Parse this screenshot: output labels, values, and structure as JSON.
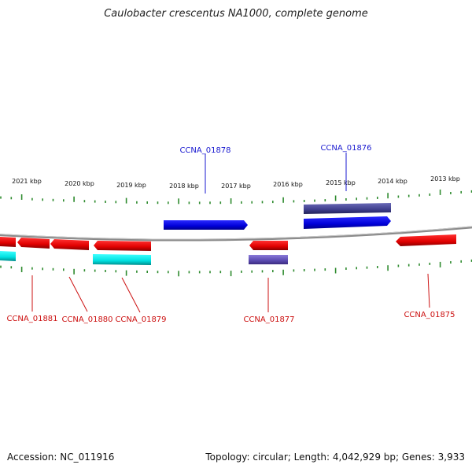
{
  "title": "Caulobacter crescentus NA1000, complete genome",
  "footer": {
    "accession": "Accession: NC_011916",
    "topology": "Topology: circular; Length: 4,042,929 bp; Genes: 3,933"
  },
  "colors": {
    "backbone": "#8a8a8a",
    "tick": "#2e8b2e",
    "forward_cds": "#1010e0",
    "forward_other": "#4a4aa0",
    "reverse_cds": "#e01010",
    "reverse_other": "#10d8d8",
    "reverse_misc": "#6a5ac0",
    "label_forward": "#1a1ad0",
    "label_reverse": "#cc1010"
  },
  "kbp_labels": [
    "2021 kbp",
    "2020 kbp",
    "2019 kbp",
    "2018 kbp",
    "2017 kbp",
    "2016 kbp",
    "2015 kbp",
    "2014 kbp",
    "2013 kbp"
  ],
  "gene_labels": [
    {
      "text": "CCNA_01878",
      "strand": "forward"
    },
    {
      "text": "CCNA_01876",
      "strand": "forward"
    },
    {
      "text": "CCNA_01881",
      "strand": "reverse"
    },
    {
      "text": "CCNA_01880",
      "strand": "reverse"
    },
    {
      "text": "CCNA_01879",
      "strand": "reverse"
    },
    {
      "text": "CCNA_01877",
      "strand": "reverse"
    },
    {
      "text": "CCNA_01875",
      "strand": "reverse"
    }
  ]
}
